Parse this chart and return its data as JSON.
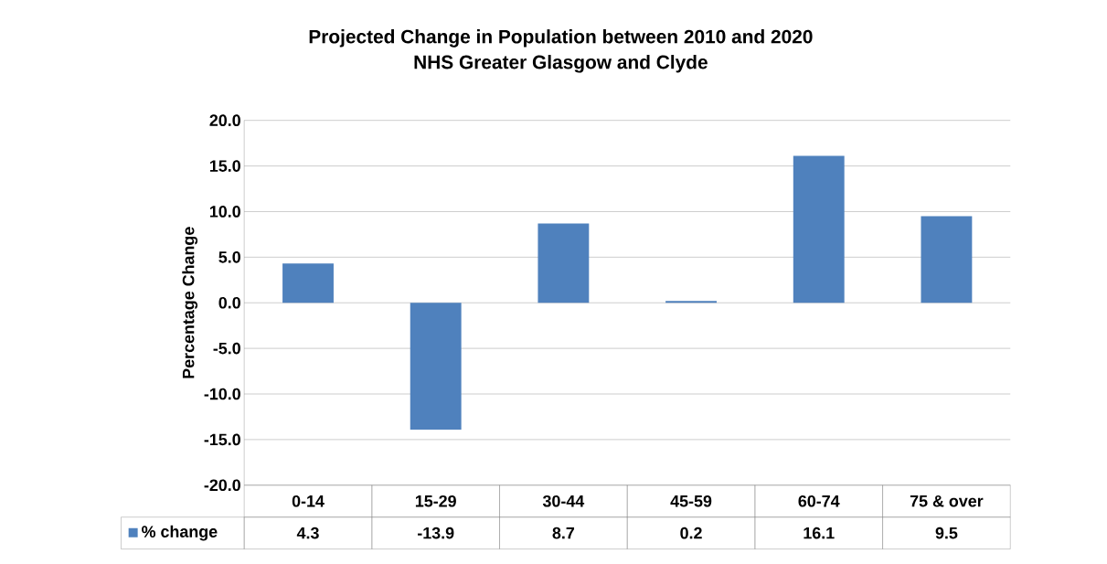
{
  "chart_data": {
    "type": "bar",
    "title": "Projected Change in Population between 2010 and 2020",
    "subtitle": "NHS Greater Glasgow and Clyde",
    "ylabel": "Percentage Change",
    "categories": [
      "0-14",
      "15-29",
      "30-44",
      "45-59",
      "60-74",
      "75 & over"
    ],
    "series": [
      {
        "name": "% change",
        "color": "#4f81bd",
        "values": [
          4.3,
          -13.9,
          8.7,
          0.2,
          16.1,
          9.5
        ]
      }
    ],
    "ylim": [
      -20,
      20
    ],
    "yticks": [
      {
        "value": -20,
        "label": "-20.0"
      },
      {
        "value": -15,
        "label": "-15.0"
      },
      {
        "value": -10,
        "label": "-10.0"
      },
      {
        "value": -5,
        "label": "-5.0"
      },
      {
        "value": 0,
        "label": "0.0"
      },
      {
        "value": 5,
        "label": "5.0"
      },
      {
        "value": 10,
        "label": "10.0"
      },
      {
        "value": 15,
        "label": "15.0"
      },
      {
        "value": 20,
        "label": "20.0"
      }
    ],
    "grid": "y",
    "legend": "bottom",
    "data_labels": true
  }
}
